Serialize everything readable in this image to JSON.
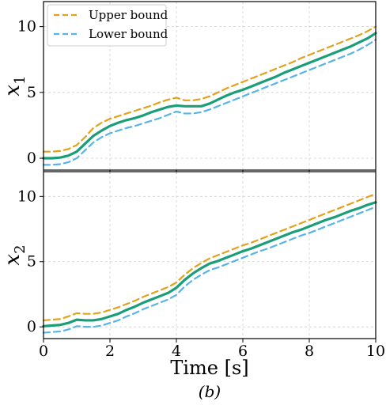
{
  "chart_data": [
    {
      "type": "line",
      "ylabel_main": "x",
      "ylabel_sub": "1",
      "xlim": [
        0,
        10
      ],
      "ylim": [
        -0.9,
        11.9
      ],
      "xticks": [
        "0",
        "2",
        "4",
        "6",
        "8",
        "10"
      ],
      "yticks": [
        "0",
        "5",
        "10"
      ],
      "grid": true,
      "legend_position": "top-left",
      "x": [
        0,
        0.25,
        0.5,
        0.75,
        1.0,
        1.25,
        1.5,
        1.75,
        2.0,
        2.25,
        2.5,
        2.75,
        3.0,
        3.25,
        3.5,
        3.75,
        4.0,
        4.25,
        4.5,
        4.75,
        5.0,
        5.25,
        5.5,
        5.75,
        6.0,
        6.25,
        6.5,
        6.75,
        7.0,
        7.25,
        7.5,
        7.75,
        8.0,
        8.25,
        8.5,
        8.75,
        9.0,
        9.25,
        9.5,
        9.75,
        10.0
      ],
      "series": [
        {
          "name": "Upper bound",
          "color": "#E4A11B",
          "style": "dashed",
          "values": [
            0.5,
            0.5,
            0.55,
            0.7,
            1.0,
            1.6,
            2.3,
            2.7,
            3.0,
            3.2,
            3.4,
            3.6,
            3.8,
            4.0,
            4.25,
            4.45,
            4.6,
            4.4,
            4.4,
            4.5,
            4.7,
            5.0,
            5.3,
            5.55,
            5.8,
            6.05,
            6.3,
            6.55,
            6.8,
            7.05,
            7.3,
            7.6,
            7.85,
            8.1,
            8.35,
            8.6,
            8.85,
            9.1,
            9.35,
            9.65,
            10.0
          ]
        },
        {
          "color": "#1A9E77",
          "style": "solid",
          "values": [
            0.0,
            0.0,
            0.05,
            0.2,
            0.5,
            1.1,
            1.7,
            2.1,
            2.45,
            2.7,
            2.9,
            3.05,
            3.25,
            3.5,
            3.7,
            3.9,
            4.0,
            3.95,
            3.95,
            3.95,
            4.15,
            4.45,
            4.75,
            5.0,
            5.2,
            5.45,
            5.7,
            5.95,
            6.2,
            6.5,
            6.75,
            7.0,
            7.25,
            7.5,
            7.75,
            8.0,
            8.25,
            8.5,
            8.8,
            9.1,
            9.5
          ]
        },
        {
          "name": "Lower bound",
          "color": "#56B4E9",
          "style": "dashed",
          "values": [
            -0.5,
            -0.5,
            -0.45,
            -0.3,
            0.0,
            0.6,
            1.2,
            1.6,
            1.9,
            2.1,
            2.3,
            2.45,
            2.65,
            2.85,
            3.05,
            3.3,
            3.55,
            3.4,
            3.4,
            3.5,
            3.7,
            3.95,
            4.2,
            4.45,
            4.7,
            4.95,
            5.2,
            5.45,
            5.7,
            5.95,
            6.2,
            6.45,
            6.7,
            6.95,
            7.2,
            7.45,
            7.7,
            7.95,
            8.25,
            8.6,
            9.0
          ]
        }
      ]
    },
    {
      "type": "line",
      "ylabel_main": "x",
      "ylabel_sub": "2",
      "xlabel": "Time [s]",
      "xlim": [
        0,
        10
      ],
      "ylim": [
        -0.9,
        11.9
      ],
      "xticks": [
        "0",
        "2",
        "4",
        "6",
        "8",
        "10"
      ],
      "yticks": [
        "0",
        "5",
        "10"
      ],
      "grid": true,
      "x": [
        0,
        0.25,
        0.5,
        0.75,
        1.0,
        1.25,
        1.5,
        1.75,
        2.0,
        2.25,
        2.5,
        2.75,
        3.0,
        3.25,
        3.5,
        3.75,
        4.0,
        4.25,
        4.5,
        4.75,
        5.0,
        5.25,
        5.5,
        5.75,
        6.0,
        6.25,
        6.5,
        6.75,
        7.0,
        7.25,
        7.5,
        7.75,
        8.0,
        8.25,
        8.5,
        8.75,
        9.0,
        9.25,
        9.5,
        9.75,
        10.0
      ],
      "series": [
        {
          "name": "Upper bound",
          "color": "#E4A11B",
          "style": "dashed",
          "values": [
            0.5,
            0.55,
            0.6,
            0.8,
            1.05,
            1.0,
            1.0,
            1.1,
            1.3,
            1.5,
            1.75,
            2.0,
            2.3,
            2.55,
            2.8,
            3.05,
            3.4,
            4.0,
            4.5,
            4.9,
            5.25,
            5.5,
            5.75,
            6.0,
            6.25,
            6.45,
            6.7,
            6.95,
            7.2,
            7.45,
            7.7,
            7.95,
            8.2,
            8.45,
            8.7,
            8.95,
            9.2,
            9.45,
            9.7,
            9.95,
            10.2
          ]
        },
        {
          "color": "#1A9E77",
          "style": "solid",
          "values": [
            0.05,
            0.1,
            0.15,
            0.3,
            0.55,
            0.5,
            0.5,
            0.6,
            0.8,
            1.0,
            1.3,
            1.55,
            1.85,
            2.1,
            2.35,
            2.6,
            3.0,
            3.6,
            4.1,
            4.5,
            4.85,
            5.05,
            5.3,
            5.55,
            5.8,
            6.0,
            6.25,
            6.5,
            6.75,
            7.0,
            7.25,
            7.45,
            7.7,
            7.95,
            8.2,
            8.4,
            8.65,
            8.9,
            9.1,
            9.35,
            9.55
          ]
        },
        {
          "name": "Lower bound",
          "color": "#56B4E9",
          "style": "dashed",
          "values": [
            -0.45,
            -0.4,
            -0.35,
            -0.2,
            0.05,
            0.0,
            0.0,
            0.1,
            0.3,
            0.5,
            0.8,
            1.05,
            1.35,
            1.6,
            1.85,
            2.1,
            2.45,
            3.1,
            3.6,
            4.0,
            4.35,
            4.55,
            4.8,
            5.05,
            5.3,
            5.55,
            5.8,
            6.0,
            6.25,
            6.5,
            6.75,
            7.0,
            7.2,
            7.45,
            7.7,
            7.95,
            8.2,
            8.45,
            8.7,
            8.95,
            9.2
          ]
        }
      ]
    }
  ],
  "caption": "(b)"
}
